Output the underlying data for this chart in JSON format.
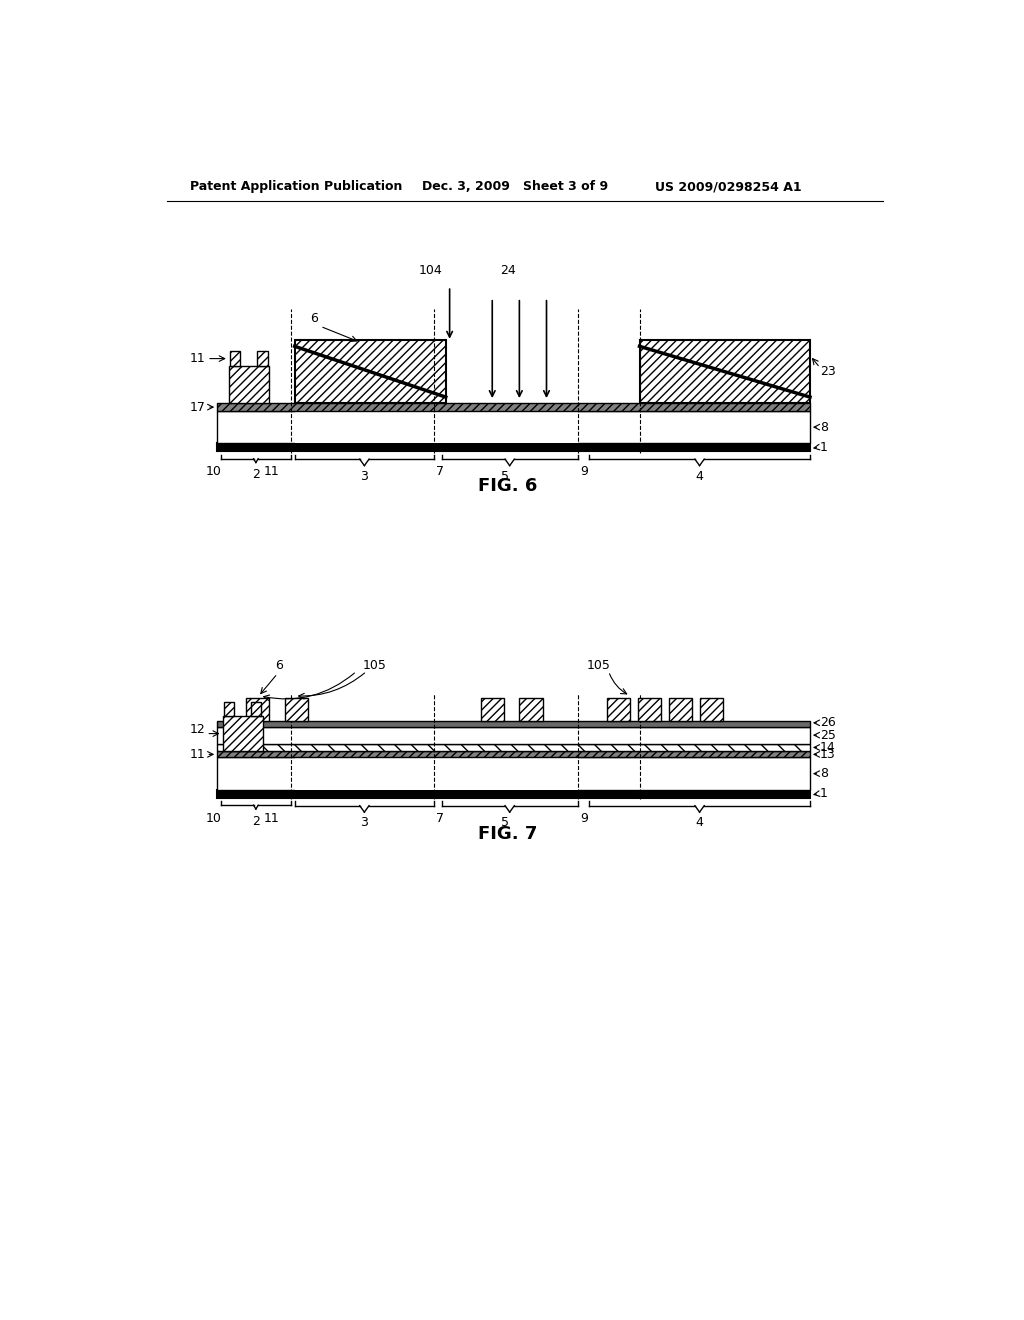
{
  "header_left": "Patent Application Publication",
  "header_mid": "Dec. 3, 2009   Sheet 3 of 9",
  "header_right": "US 2009/0298254 A1",
  "fig6_label": "FIG. 6",
  "fig7_label": "FIG. 7",
  "bg_color": "#ffffff",
  "line_color": "#000000"
}
